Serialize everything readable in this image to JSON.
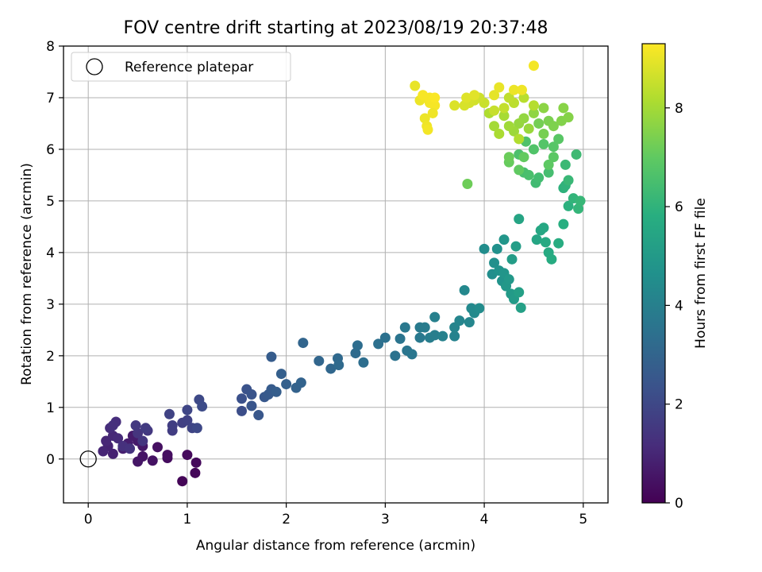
{
  "chart_data": {
    "type": "scatter",
    "title": "FOV centre drift starting at 2023/08/19 20:37:48",
    "xlabel": "Angular distance from reference (arcmin)",
    "ylabel": "Rotation from reference (arcmin)",
    "xlim": [
      -0.25,
      5.25
    ],
    "ylim": [
      -0.85,
      8.0
    ],
    "xticks": [
      0,
      1,
      2,
      3,
      4,
      5
    ],
    "yticks": [
      0,
      1,
      2,
      3,
      4,
      5,
      6,
      7,
      8
    ],
    "grid": true,
    "legend": {
      "position": "top-left",
      "entries": [
        "Reference platepar"
      ]
    },
    "colorbar": {
      "label": "Hours from first FF file",
      "range": [
        0,
        9.3
      ],
      "ticks": [
        0,
        2,
        4,
        6,
        8
      ],
      "colormap": "viridis"
    },
    "reference_point": {
      "x": 0,
      "y": 0
    },
    "points": [
      [
        0.95,
        -0.43,
        0.1
      ],
      [
        1.08,
        -0.27,
        0.15
      ],
      [
        1.09,
        -0.07,
        0.2
      ],
      [
        1.0,
        0.08,
        0.25
      ],
      [
        0.8,
        0.02,
        0.3
      ],
      [
        0.8,
        0.08,
        0.35
      ],
      [
        0.7,
        0.23,
        0.4
      ],
      [
        0.65,
        -0.03,
        0.45
      ],
      [
        0.55,
        0.05,
        0.5
      ],
      [
        0.5,
        -0.05,
        0.55
      ],
      [
        0.55,
        0.25,
        0.6
      ],
      [
        0.5,
        0.35,
        0.65
      ],
      [
        0.45,
        0.45,
        0.7
      ],
      [
        0.4,
        0.3,
        0.75
      ],
      [
        0.35,
        0.2,
        0.8
      ],
      [
        0.25,
        0.1,
        0.85
      ],
      [
        0.2,
        0.25,
        0.9
      ],
      [
        0.15,
        0.15,
        0.95
      ],
      [
        0.18,
        0.35,
        1.0
      ],
      [
        0.25,
        0.45,
        1.05
      ],
      [
        0.3,
        0.4,
        1.1
      ],
      [
        0.22,
        0.6,
        1.15
      ],
      [
        0.28,
        0.72,
        1.2
      ],
      [
        0.25,
        0.65,
        1.25
      ],
      [
        0.35,
        0.25,
        1.3
      ],
      [
        0.42,
        0.2,
        1.35
      ],
      [
        0.5,
        0.5,
        1.4
      ],
      [
        0.55,
        0.35,
        1.45
      ],
      [
        0.6,
        0.55,
        1.5
      ],
      [
        0.48,
        0.65,
        1.55
      ],
      [
        0.58,
        0.6,
        1.6
      ],
      [
        0.85,
        0.55,
        1.65
      ],
      [
        0.85,
        0.65,
        1.7
      ],
      [
        0.95,
        0.7,
        1.75
      ],
      [
        1.0,
        0.75,
        1.8
      ],
      [
        0.82,
        0.87,
        1.85
      ],
      [
        1.05,
        0.6,
        1.9
      ],
      [
        1.0,
        0.95,
        1.95
      ],
      [
        1.1,
        0.6,
        2.0
      ],
      [
        1.12,
        1.15,
        2.05
      ],
      [
        1.15,
        1.02,
        2.1
      ],
      [
        1.55,
        0.93,
        2.2
      ],
      [
        1.55,
        1.17,
        2.3
      ],
      [
        1.6,
        1.35,
        2.35
      ],
      [
        1.65,
        1.25,
        2.4
      ],
      [
        1.65,
        1.03,
        2.45
      ],
      [
        1.72,
        0.85,
        2.5
      ],
      [
        1.78,
        1.2,
        2.55
      ],
      [
        1.82,
        1.25,
        2.6
      ],
      [
        1.85,
        1.35,
        2.65
      ],
      [
        1.85,
        1.98,
        2.7
      ],
      [
        1.9,
        1.3,
        2.75
      ],
      [
        1.95,
        1.65,
        2.8
      ],
      [
        2.0,
        1.45,
        2.85
      ],
      [
        2.1,
        1.38,
        2.9
      ],
      [
        2.15,
        1.48,
        2.95
      ],
      [
        2.17,
        2.25,
        3.0
      ],
      [
        2.33,
        1.9,
        3.05
      ],
      [
        2.45,
        1.75,
        3.1
      ],
      [
        2.52,
        1.95,
        3.15
      ],
      [
        2.53,
        1.82,
        3.2
      ],
      [
        2.7,
        2.05,
        3.25
      ],
      [
        2.72,
        2.2,
        3.3
      ],
      [
        2.78,
        1.87,
        3.35
      ],
      [
        2.93,
        2.23,
        3.4
      ],
      [
        3.0,
        2.35,
        3.45
      ],
      [
        3.1,
        2.0,
        3.5
      ],
      [
        3.15,
        2.33,
        3.55
      ],
      [
        3.22,
        2.1,
        3.6
      ],
      [
        3.27,
        2.03,
        3.65
      ],
      [
        3.2,
        2.55,
        3.7
      ],
      [
        3.35,
        2.35,
        3.75
      ],
      [
        3.35,
        2.55,
        3.8
      ],
      [
        3.4,
        2.55,
        3.85
      ],
      [
        3.45,
        2.35,
        3.9
      ],
      [
        3.5,
        2.4,
        3.95
      ],
      [
        3.5,
        2.75,
        4.0
      ],
      [
        3.58,
        2.38,
        4.05
      ],
      [
        3.7,
        2.38,
        4.1
      ],
      [
        3.7,
        2.55,
        4.15
      ],
      [
        3.75,
        2.68,
        4.2
      ],
      [
        3.85,
        2.65,
        4.25
      ],
      [
        3.8,
        3.27,
        4.3
      ],
      [
        3.87,
        2.92,
        4.35
      ],
      [
        3.9,
        2.83,
        4.4
      ],
      [
        3.95,
        2.92,
        4.45
      ],
      [
        4.0,
        4.07,
        4.5
      ],
      [
        4.08,
        3.58,
        4.55
      ],
      [
        4.1,
        3.8,
        4.6
      ],
      [
        4.13,
        4.07,
        4.65
      ],
      [
        4.15,
        3.65,
        4.7
      ],
      [
        4.18,
        3.45,
        4.75
      ],
      [
        4.2,
        3.6,
        4.8
      ],
      [
        4.2,
        4.25,
        4.85
      ],
      [
        4.22,
        3.35,
        4.9
      ],
      [
        4.25,
        3.48,
        4.95
      ],
      [
        4.27,
        3.2,
        5.0
      ],
      [
        4.3,
        3.1,
        5.05
      ],
      [
        4.28,
        3.87,
        5.1
      ],
      [
        4.32,
        4.12,
        5.15
      ],
      [
        4.35,
        3.23,
        5.2
      ],
      [
        4.37,
        2.93,
        5.25
      ],
      [
        4.35,
        4.65,
        5.4
      ],
      [
        4.53,
        4.25,
        5.45
      ],
      [
        4.57,
        4.43,
        5.5
      ],
      [
        4.6,
        4.48,
        5.55
      ],
      [
        4.62,
        4.2,
        5.6
      ],
      [
        4.65,
        4.0,
        5.65
      ],
      [
        4.68,
        3.87,
        5.7
      ],
      [
        4.75,
        4.18,
        5.75
      ],
      [
        4.8,
        4.55,
        5.8
      ],
      [
        4.85,
        4.9,
        5.9
      ],
      [
        4.8,
        5.25,
        5.95
      ],
      [
        4.82,
        5.3,
        6.0
      ],
      [
        4.9,
        5.05,
        6.05
      ],
      [
        4.95,
        4.85,
        6.1
      ],
      [
        4.97,
        5.0,
        6.15
      ],
      [
        4.85,
        5.4,
        6.2
      ],
      [
        4.82,
        5.7,
        6.25
      ],
      [
        4.93,
        5.9,
        6.3
      ],
      [
        4.52,
        5.35,
        6.35
      ],
      [
        4.55,
        5.45,
        6.4
      ],
      [
        4.65,
        5.55,
        6.45
      ],
      [
        4.4,
        5.55,
        6.5
      ],
      [
        4.45,
        5.5,
        6.55
      ],
      [
        4.35,
        5.9,
        6.6
      ],
      [
        4.42,
        6.15,
        6.65
      ],
      [
        4.5,
        6.0,
        6.7
      ],
      [
        4.6,
        6.1,
        6.75
      ],
      [
        4.7,
        6.05,
        6.8
      ],
      [
        4.75,
        6.2,
        6.85
      ],
      [
        4.7,
        5.85,
        6.9
      ],
      [
        4.65,
        5.7,
        6.95
      ],
      [
        4.35,
        5.6,
        7.0
      ],
      [
        4.4,
        5.85,
        7.05
      ],
      [
        4.25,
        5.75,
        7.1
      ],
      [
        4.25,
        5.85,
        7.15
      ],
      [
        3.83,
        5.33,
        7.2
      ],
      [
        4.55,
        6.5,
        7.3
      ],
      [
        4.6,
        6.3,
        7.35
      ],
      [
        4.65,
        6.55,
        7.4
      ],
      [
        4.7,
        6.45,
        7.45
      ],
      [
        4.78,
        6.55,
        7.5
      ],
      [
        4.85,
        6.62,
        7.55
      ],
      [
        4.8,
        6.8,
        7.6
      ],
      [
        4.6,
        6.8,
        7.65
      ],
      [
        4.5,
        6.7,
        7.7
      ],
      [
        4.4,
        6.6,
        7.75
      ],
      [
        4.35,
        6.5,
        7.8
      ],
      [
        4.45,
        6.4,
        7.85
      ],
      [
        4.3,
        6.35,
        7.9
      ],
      [
        4.25,
        6.45,
        7.95
      ],
      [
        4.1,
        6.45,
        8.0
      ],
      [
        4.2,
        6.65,
        8.05
      ],
      [
        4.15,
        6.3,
        8.1
      ],
      [
        4.05,
        6.7,
        8.15
      ],
      [
        4.35,
        6.2,
        8.2
      ],
      [
        4.5,
        6.85,
        8.25
      ],
      [
        4.4,
        7.0,
        8.3
      ],
      [
        4.3,
        6.9,
        8.35
      ],
      [
        4.25,
        7.0,
        8.4
      ],
      [
        4.2,
        6.8,
        8.45
      ],
      [
        4.1,
        6.75,
        8.5
      ],
      [
        4.0,
        6.9,
        8.55
      ],
      [
        3.95,
        7.0,
        8.6
      ],
      [
        3.9,
        6.95,
        8.65
      ],
      [
        3.85,
        6.9,
        8.7
      ],
      [
        3.8,
        6.85,
        8.75
      ],
      [
        3.7,
        6.85,
        8.8
      ],
      [
        3.82,
        7.0,
        8.85
      ],
      [
        3.9,
        7.05,
        8.9
      ],
      [
        4.1,
        7.05,
        8.95
      ],
      [
        4.15,
        7.2,
        9.0
      ],
      [
        4.3,
        7.15,
        9.05
      ],
      [
        4.38,
        7.15,
        9.1
      ],
      [
        4.5,
        7.62,
        9.15
      ],
      [
        3.3,
        7.23,
        9.0
      ],
      [
        3.35,
        6.95,
        9.05
      ],
      [
        3.4,
        7.0,
        9.1
      ],
      [
        3.45,
        6.9,
        9.15
      ],
      [
        3.5,
        6.85,
        9.2
      ],
      [
        3.48,
        6.7,
        9.1
      ],
      [
        3.4,
        6.6,
        9.05
      ],
      [
        3.42,
        6.45,
        9.1
      ],
      [
        3.43,
        6.38,
        9.15
      ],
      [
        3.45,
        7.0,
        9.2
      ],
      [
        3.38,
        7.05,
        9.22
      ],
      [
        3.5,
        7.0,
        9.25
      ]
    ]
  }
}
